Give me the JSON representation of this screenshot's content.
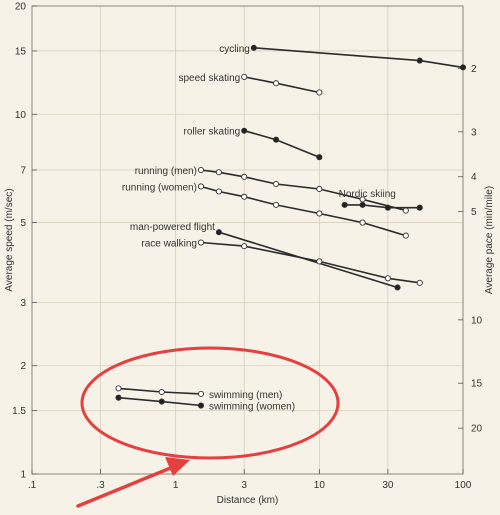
{
  "chart_data": {
    "type": "line",
    "xlabel": "Distance (km)",
    "ylabel": "Average speed (m/sec)",
    "y2label": "Average pace (min/mile)",
    "x_scale": "log",
    "y_scale": "log",
    "xlim": [
      0.1,
      100
    ],
    "ylim": [
      1,
      20
    ],
    "grid": true,
    "x_ticks": [
      {
        "value": 0.1,
        "label": ".1"
      },
      {
        "value": 0.3,
        "label": ".3"
      },
      {
        "value": 1,
        "label": "1"
      },
      {
        "value": 3,
        "label": "3"
      },
      {
        "value": 10,
        "label": "10"
      },
      {
        "value": 30,
        "label": "30"
      },
      {
        "value": 100,
        "label": "100"
      }
    ],
    "y_ticks": [
      {
        "value": 1,
        "label": "1"
      },
      {
        "value": 1.5,
        "label": "1.5"
      },
      {
        "value": 2,
        "label": "2"
      },
      {
        "value": 3,
        "label": "3"
      },
      {
        "value": 5,
        "label": "5"
      },
      {
        "value": 7,
        "label": "7"
      },
      {
        "value": 10,
        "label": "10"
      },
      {
        "value": 15,
        "label": "15"
      },
      {
        "value": 20,
        "label": "20"
      }
    ],
    "y2_ticks": [
      {
        "value": 2,
        "label": "2"
      },
      {
        "value": 3,
        "label": "3"
      },
      {
        "value": 4,
        "label": "4"
      },
      {
        "value": 5,
        "label": "5"
      },
      {
        "value": 10,
        "label": "10"
      },
      {
        "value": 15,
        "label": "15"
      },
      {
        "value": 20,
        "label": "20"
      }
    ],
    "series": [
      {
        "name": "cycling",
        "marker": "filled",
        "x": [
          3.5,
          50,
          100
        ],
        "y": [
          15.3,
          14.1,
          13.5
        ]
      },
      {
        "name": "speed skating",
        "marker": "open",
        "x": [
          3,
          5,
          10
        ],
        "y": [
          12.7,
          12.2,
          11.5
        ]
      },
      {
        "name": "roller skating",
        "marker": "filled",
        "x": [
          3,
          5,
          10
        ],
        "y": [
          9.0,
          8.5,
          7.6
        ]
      },
      {
        "name": "running (men)",
        "marker": "open",
        "x": [
          1.5,
          2,
          3,
          5,
          10,
          20,
          40
        ],
        "y": [
          7.0,
          6.9,
          6.7,
          6.4,
          6.2,
          5.8,
          5.4
        ]
      },
      {
        "name": "running (women)",
        "marker": "open",
        "x": [
          1.5,
          2,
          3,
          5,
          10,
          20,
          40
        ],
        "y": [
          6.3,
          6.1,
          5.9,
          5.6,
          5.3,
          5.0,
          4.6
        ]
      },
      {
        "name": "Nordic skiing",
        "marker": "filled",
        "x": [
          15,
          20,
          30,
          50
        ],
        "y": [
          5.6,
          5.6,
          5.5,
          5.5
        ]
      },
      {
        "name": "man-powered flight",
        "marker": "filled",
        "x": [
          2,
          35
        ],
        "y": [
          4.7,
          3.3
        ]
      },
      {
        "name": "race walking",
        "marker": "open",
        "x": [
          1.5,
          3,
          10,
          30,
          50
        ],
        "y": [
          4.4,
          4.3,
          3.9,
          3.5,
          3.4
        ]
      },
      {
        "name": "swimming (men)",
        "marker": "open",
        "x": [
          0.4,
          0.8,
          1.5
        ],
        "y": [
          1.73,
          1.69,
          1.67
        ]
      },
      {
        "name": "swimming (women)",
        "marker": "filled",
        "x": [
          0.4,
          0.8,
          1.5
        ],
        "y": [
          1.63,
          1.59,
          1.55
        ]
      }
    ],
    "annotations": [
      {
        "type": "ellipse",
        "color": "#e53f3f",
        "label": ""
      },
      {
        "type": "arrow",
        "color": "#e53f3f",
        "label": ""
      }
    ]
  }
}
